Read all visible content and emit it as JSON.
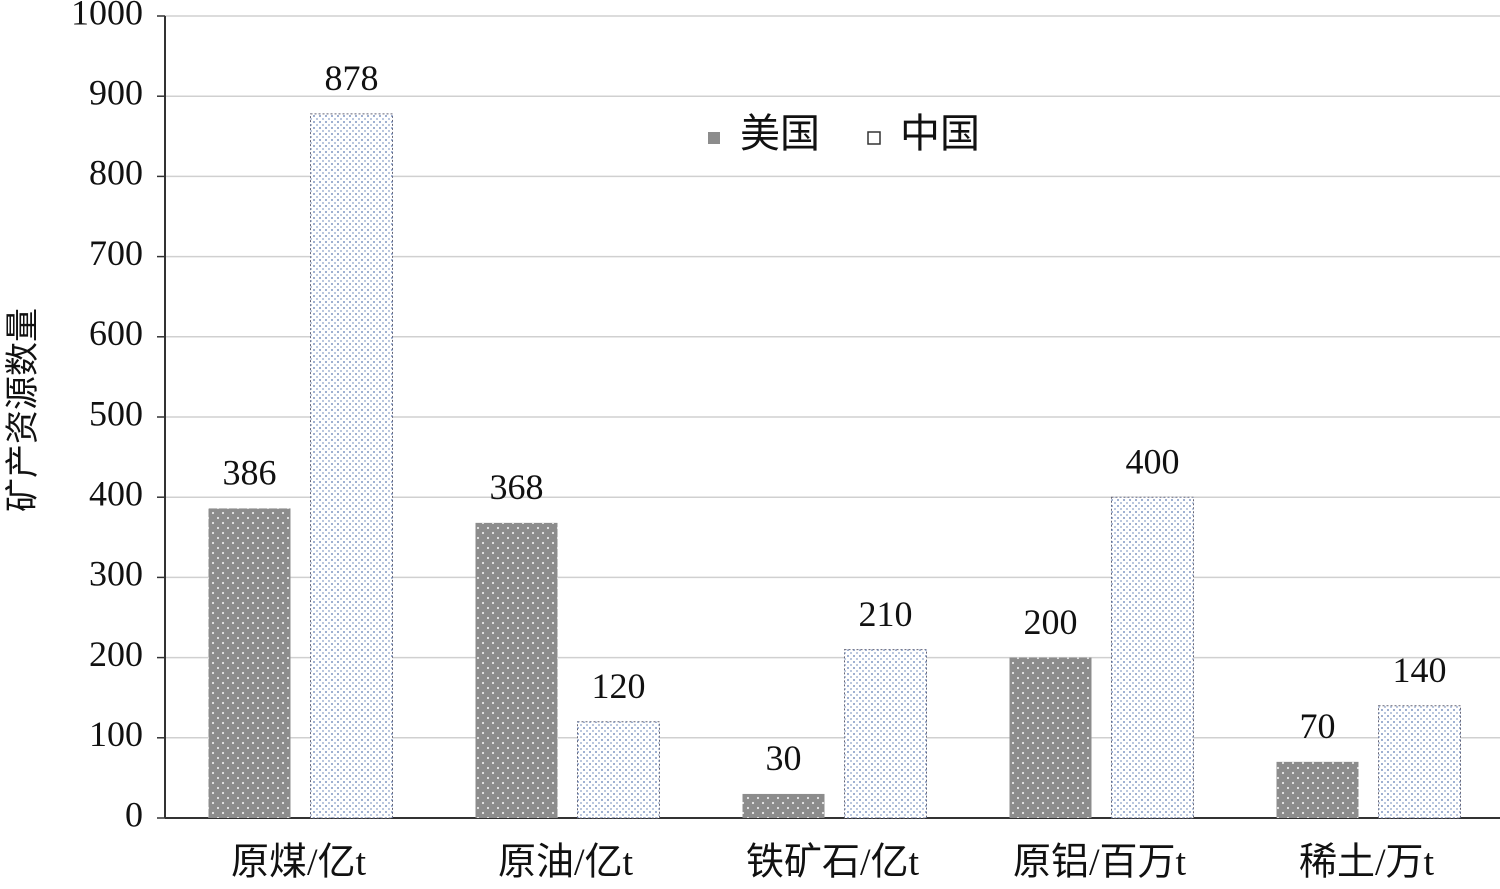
{
  "chart_data": {
    "type": "bar",
    "y_label": "矿产资源数量",
    "categories": [
      "原煤/亿t",
      "原油/亿t",
      "铁矿石/亿t",
      "原铝/百万t",
      "稀土/万t"
    ],
    "series": [
      {
        "name": "美国",
        "color": "#8c8c8c",
        "values": [
          386,
          368,
          30,
          200,
          70
        ]
      },
      {
        "name": "中国",
        "color": "#ffffff",
        "values": [
          878,
          120,
          210,
          400,
          140
        ]
      }
    ],
    "ylim": [
      0,
      1000
    ],
    "yticks": [
      0,
      100,
      200,
      300,
      400,
      500,
      600,
      700,
      800,
      900,
      1000
    ],
    "grid": true
  }
}
